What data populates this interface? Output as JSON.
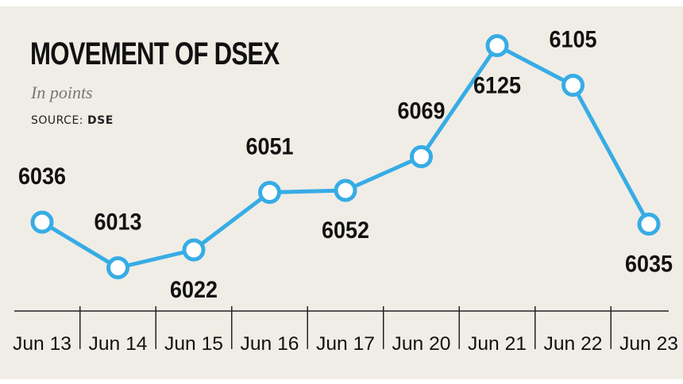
{
  "header": {
    "title": "MOVEMENT OF DSEX",
    "subtitle": "In points",
    "source_prefix": "SOURCE: ",
    "source_name": "DSE"
  },
  "colors": {
    "line": "#37ace5",
    "marker_fill": "#ffffff",
    "background": "#f0ede6",
    "axis": "#222222"
  },
  "chart_data": {
    "type": "line",
    "title": "MOVEMENT OF DSEX",
    "subtitle": "In points",
    "categories": [
      "Jun 13",
      "Jun 14",
      "Jun 15",
      "Jun 16",
      "Jun 17",
      "Jun 20",
      "Jun 21",
      "Jun 22",
      "Jun 23"
    ],
    "series": [
      {
        "values": [
          6036,
          6013,
          6022,
          6051,
          6052,
          6069,
          6125,
          6105,
          6035
        ]
      }
    ],
    "value_labels": [
      "6036",
      "6013",
      "6022",
      "6051",
      "6052",
      "6069",
      "6125",
      "6105",
      "6035"
    ],
    "xlabel": "",
    "ylabel": "",
    "grid": false,
    "legend": "none"
  }
}
